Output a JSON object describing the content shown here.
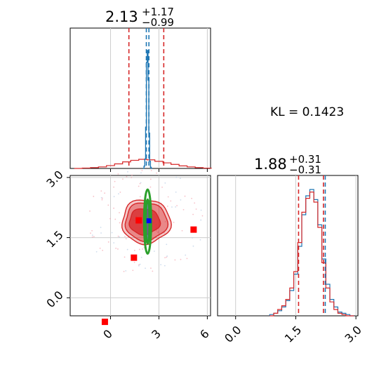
{
  "chart_data": {
    "type": "corner",
    "annotation": "KL = 0.1423",
    "colors": {
      "posterior_a": "#1f77b4",
      "posterior_b": "#d62728",
      "contour_highlight": "#2ca02c",
      "marker_red": "#ff0000",
      "marker_blue": "#0000ff",
      "grid": "#cccccc"
    },
    "params": [
      {
        "title_main": "2.13",
        "title_plus": "+1.17",
        "title_minus": "−0.99",
        "range": [
          -2.5,
          6.2
        ],
        "ticks": [
          0,
          3,
          6
        ],
        "tick_labels": [
          "0",
          "3",
          "6"
        ],
        "quantiles_b": [
          1.14,
          2.13,
          3.3
        ],
        "quantiles_a": [
          2.22,
          2.3,
          2.38
        ],
        "hist_a_x": [
          2.05,
          2.1,
          2.15,
          2.2,
          2.25,
          2.3,
          2.35,
          2.4,
          2.45,
          2.5,
          2.55
        ],
        "hist_a_y": [
          0.0,
          0.02,
          0.08,
          0.35,
          0.9,
          1.0,
          0.75,
          0.3,
          0.06,
          0.01,
          0.0
        ],
        "hist_b_x": [
          -2.0,
          -1.5,
          -1.0,
          -0.5,
          0.0,
          0.5,
          1.0,
          1.5,
          2.0,
          2.5,
          3.0,
          3.5,
          4.0,
          4.5,
          5.0,
          5.5,
          6.0
        ],
        "hist_b_y": [
          0.0,
          0.004,
          0.008,
          0.015,
          0.028,
          0.045,
          0.065,
          0.08,
          0.09,
          0.085,
          0.07,
          0.055,
          0.04,
          0.025,
          0.015,
          0.008,
          0.003
        ]
      },
      {
        "title_main": "1.88",
        "title_plus": "+0.31",
        "title_minus": "−0.31",
        "range": [
          -0.45,
          3.05
        ],
        "ticks": [
          0.0,
          1.5,
          3.0
        ],
        "tick_labels": [
          "0.0",
          "1.5",
          "3.0"
        ],
        "quantiles_b": [
          1.57,
          1.88,
          2.19
        ],
        "quantiles_a": [
          2.2
        ],
        "hist_a_x": [
          0.9,
          1.0,
          1.1,
          1.2,
          1.3,
          1.4,
          1.5,
          1.6,
          1.7,
          1.8,
          1.9,
          2.0,
          2.1,
          2.2,
          2.3,
          2.4,
          2.5,
          2.6,
          2.7,
          2.8,
          2.9
        ],
        "hist_a_y": [
          0.01,
          0.02,
          0.04,
          0.07,
          0.12,
          0.2,
          0.33,
          0.55,
          0.8,
          0.95,
          1.0,
          0.92,
          0.72,
          0.45,
          0.25,
          0.13,
          0.07,
          0.03,
          0.02,
          0.01,
          0.0
        ],
        "hist_b_x": [
          0.9,
          1.0,
          1.1,
          1.2,
          1.3,
          1.4,
          1.5,
          1.6,
          1.7,
          1.8,
          1.9,
          2.0,
          2.1,
          2.2,
          2.3,
          2.4,
          2.5,
          2.6,
          2.7,
          2.8,
          2.9
        ],
        "hist_b_y": [
          0.0,
          0.02,
          0.05,
          0.08,
          0.13,
          0.22,
          0.35,
          0.58,
          0.82,
          0.93,
          0.98,
          0.9,
          0.7,
          0.42,
          0.22,
          0.11,
          0.05,
          0.02,
          0.01,
          0.0,
          0.0
        ]
      }
    ],
    "scatter_markers_red": [
      [
        -0.35,
        -0.6
      ],
      [
        1.75,
        1.93
      ],
      [
        1.45,
        1.0
      ],
      [
        5.15,
        1.7
      ]
    ],
    "scatter_marker_blue": [
      2.38,
      1.92
    ],
    "joint_contours_b": [
      {
        "cx": 2.2,
        "cy": 1.9,
        "rx": 3.0,
        "ry": 1.1,
        "opacity": 0.25
      },
      {
        "cx": 2.2,
        "cy": 1.9,
        "rx": 2.6,
        "ry": 0.95,
        "opacity": 0.4
      },
      {
        "cx": 2.1,
        "cy": 1.9,
        "rx": 1.9,
        "ry": 0.65,
        "opacity": 0.75
      }
    ],
    "joint_contours_a": [
      {
        "cx": 2.3,
        "cy": 1.9,
        "rx": 0.22,
        "ry": 0.8
      },
      {
        "cx": 2.3,
        "cy": 1.9,
        "rx": 0.12,
        "ry": 0.55
      }
    ]
  }
}
